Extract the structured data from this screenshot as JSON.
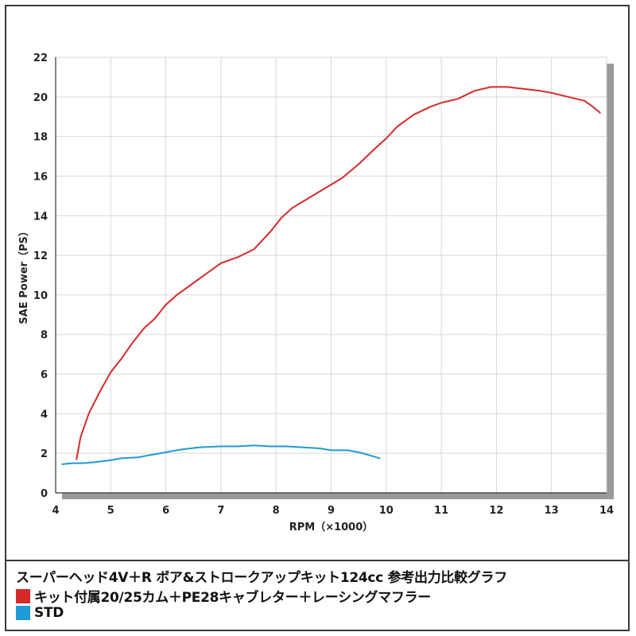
{
  "chart_data": {
    "type": "line",
    "xlabel": "RPM（×1000）",
    "ylabel": "SAE Power（PS）",
    "xlim": [
      4,
      14
    ],
    "ylim": [
      0,
      22
    ],
    "xticks": [
      4,
      5,
      6,
      7,
      8,
      9,
      10,
      11,
      12,
      13,
      14
    ],
    "yticks": [
      0,
      2,
      4,
      6,
      8,
      10,
      12,
      14,
      16,
      18,
      20,
      22
    ],
    "grid": true,
    "title": "スーパーヘッド4V＋R ボア&ストロークアップキット124cc 参考出力比較グラフ",
    "series": [
      {
        "name": "キット付属20/25カム＋PE28キャブレター＋レーシングマフラー",
        "color": "#d62a2a",
        "x": [
          4.38,
          4.45,
          4.6,
          4.8,
          5.0,
          5.2,
          5.4,
          5.6,
          5.8,
          6.0,
          6.2,
          6.5,
          6.8,
          7.0,
          7.3,
          7.6,
          7.9,
          8.1,
          8.3,
          8.6,
          8.9,
          9.2,
          9.5,
          9.8,
          10.0,
          10.2,
          10.5,
          10.8,
          11.0,
          11.3,
          11.6,
          11.9,
          12.2,
          12.5,
          12.8,
          13.0,
          13.3,
          13.6,
          13.75,
          13.88
        ],
        "y": [
          1.7,
          2.8,
          4.0,
          5.1,
          6.1,
          6.8,
          7.6,
          8.3,
          8.8,
          9.5,
          10.0,
          10.6,
          11.2,
          11.6,
          11.9,
          12.3,
          13.2,
          13.9,
          14.4,
          14.9,
          15.4,
          15.9,
          16.6,
          17.4,
          17.9,
          18.5,
          19.1,
          19.5,
          19.7,
          19.9,
          20.3,
          20.5,
          20.5,
          20.4,
          20.3,
          20.2,
          20.0,
          19.8,
          19.5,
          19.2
        ]
      },
      {
        "name": "STD",
        "color": "#1e9ad6",
        "x": [
          4.12,
          4.3,
          4.5,
          4.7,
          5.0,
          5.2,
          5.5,
          5.8,
          6.0,
          6.3,
          6.6,
          7.0,
          7.3,
          7.6,
          7.9,
          8.2,
          8.5,
          8.8,
          9.0,
          9.3,
          9.5,
          9.7,
          9.88
        ],
        "y": [
          1.45,
          1.5,
          1.5,
          1.55,
          1.65,
          1.75,
          1.8,
          1.95,
          2.05,
          2.2,
          2.3,
          2.35,
          2.35,
          2.4,
          2.35,
          2.35,
          2.3,
          2.25,
          2.15,
          2.15,
          2.05,
          1.9,
          1.75
        ]
      }
    ]
  },
  "legend": {
    "title": "スーパーヘッド4V＋R ボア&ストロークアップキット124cc 参考出力比較グラフ",
    "items": [
      {
        "label": "キット付属20/25カム＋PE28キャブレター＋レーシングマフラー",
        "color": "#d62a2a"
      },
      {
        "label": "STD",
        "color": "#1e9ad6"
      }
    ]
  }
}
